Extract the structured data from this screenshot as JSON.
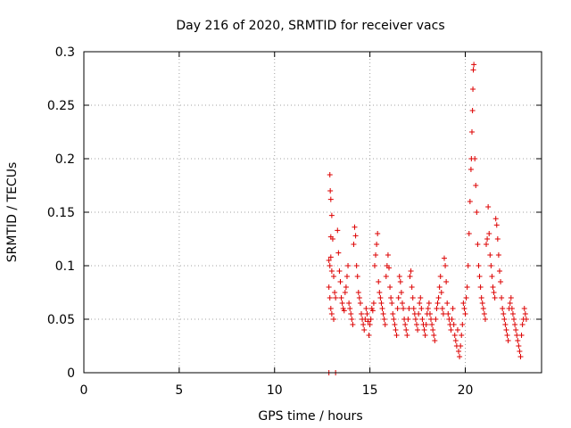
{
  "colors": {
    "series": "#dd0000",
    "grid": "#a0a0a0",
    "axis": "#000000"
  },
  "chart_data": {
    "type": "scatter",
    "title": "Day 216 of 2020, SRMTID for receiver vacs",
    "xlabel": "GPS time / hours",
    "ylabel": "SRMTID / TECUs",
    "xlim": [
      0,
      24
    ],
    "ylim": [
      0,
      0.3
    ],
    "grid": true,
    "marker": "plus",
    "x_ticks": [
      0,
      5,
      10,
      15,
      20
    ],
    "x_tick_labels": [
      "0",
      "5",
      "10",
      "15",
      "20"
    ],
    "y_ticks": [
      0,
      0.05,
      0.1,
      0.15,
      0.2,
      0.25,
      0.3
    ],
    "y_tick_labels": [
      "0",
      "0.05",
      "0.1",
      "0.15",
      "0.2",
      "0.25",
      "0.3"
    ],
    "series": [
      {
        "name": "SRMTID",
        "points": [
          [
            12.85,
            0.0
          ],
          [
            13.2,
            0.0
          ],
          [
            12.9,
            0.185
          ],
          [
            12.92,
            0.17
          ],
          [
            12.95,
            0.162
          ],
          [
            13.0,
            0.147
          ],
          [
            12.95,
            0.127
          ],
          [
            13.05,
            0.125
          ],
          [
            12.85,
            0.105
          ],
          [
            12.9,
            0.1
          ],
          [
            12.95,
            0.108
          ],
          [
            13.0,
            0.095
          ],
          [
            13.1,
            0.09
          ],
          [
            12.85,
            0.08
          ],
          [
            12.9,
            0.07
          ],
          [
            12.95,
            0.06
          ],
          [
            13.0,
            0.055
          ],
          [
            13.1,
            0.05
          ],
          [
            13.15,
            0.075
          ],
          [
            13.2,
            0.07
          ],
          [
            13.3,
            0.133
          ],
          [
            13.35,
            0.112
          ],
          [
            13.4,
            0.095
          ],
          [
            13.45,
            0.085
          ],
          [
            13.5,
            0.07
          ],
          [
            13.55,
            0.065
          ],
          [
            13.6,
            0.06
          ],
          [
            13.65,
            0.058
          ],
          [
            13.7,
            0.075
          ],
          [
            13.75,
            0.08
          ],
          [
            13.8,
            0.09
          ],
          [
            13.85,
            0.1
          ],
          [
            13.9,
            0.065
          ],
          [
            13.95,
            0.06
          ],
          [
            14.0,
            0.055
          ],
          [
            14.05,
            0.05
          ],
          [
            14.1,
            0.045
          ],
          [
            14.15,
            0.12
          ],
          [
            14.2,
            0.136
          ],
          [
            14.25,
            0.128
          ],
          [
            14.3,
            0.1
          ],
          [
            14.35,
            0.09
          ],
          [
            14.4,
            0.075
          ],
          [
            14.45,
            0.07
          ],
          [
            14.5,
            0.065
          ],
          [
            14.55,
            0.055
          ],
          [
            14.6,
            0.05
          ],
          [
            14.65,
            0.045
          ],
          [
            14.7,
            0.04
          ],
          [
            14.75,
            0.05
          ],
          [
            14.8,
            0.06
          ],
          [
            14.85,
            0.055
          ],
          [
            14.9,
            0.048
          ],
          [
            14.95,
            0.035
          ],
          [
            15.0,
            0.045
          ],
          [
            15.05,
            0.05
          ],
          [
            15.1,
            0.06
          ],
          [
            15.15,
            0.058
          ],
          [
            15.2,
            0.065
          ],
          [
            15.25,
            0.1
          ],
          [
            15.3,
            0.11
          ],
          [
            15.35,
            0.12
          ],
          [
            15.4,
            0.13
          ],
          [
            15.45,
            0.085
          ],
          [
            15.5,
            0.075
          ],
          [
            15.55,
            0.07
          ],
          [
            15.6,
            0.065
          ],
          [
            15.65,
            0.06
          ],
          [
            15.7,
            0.055
          ],
          [
            15.75,
            0.05
          ],
          [
            15.8,
            0.045
          ],
          [
            15.85,
            0.09
          ],
          [
            15.9,
            0.1
          ],
          [
            15.95,
            0.11
          ],
          [
            16.0,
            0.098
          ],
          [
            16.05,
            0.08
          ],
          [
            16.1,
            0.07
          ],
          [
            16.15,
            0.065
          ],
          [
            16.2,
            0.055
          ],
          [
            16.25,
            0.05
          ],
          [
            16.3,
            0.045
          ],
          [
            16.35,
            0.04
          ],
          [
            16.4,
            0.035
          ],
          [
            16.45,
            0.06
          ],
          [
            16.5,
            0.07
          ],
          [
            16.55,
            0.09
          ],
          [
            16.6,
            0.085
          ],
          [
            16.65,
            0.075
          ],
          [
            16.7,
            0.065
          ],
          [
            16.75,
            0.06
          ],
          [
            16.8,
            0.05
          ],
          [
            16.85,
            0.045
          ],
          [
            16.9,
            0.04
          ],
          [
            16.95,
            0.035
          ],
          [
            17.0,
            0.05
          ],
          [
            17.05,
            0.06
          ],
          [
            17.1,
            0.09
          ],
          [
            17.15,
            0.095
          ],
          [
            17.2,
            0.08
          ],
          [
            17.25,
            0.07
          ],
          [
            17.3,
            0.06
          ],
          [
            17.35,
            0.055
          ],
          [
            17.4,
            0.05
          ],
          [
            17.45,
            0.045
          ],
          [
            17.5,
            0.04
          ],
          [
            17.55,
            0.055
          ],
          [
            17.6,
            0.065
          ],
          [
            17.65,
            0.07
          ],
          [
            17.7,
            0.06
          ],
          [
            17.75,
            0.05
          ],
          [
            17.8,
            0.045
          ],
          [
            17.85,
            0.04
          ],
          [
            17.9,
            0.035
          ],
          [
            17.95,
            0.045
          ],
          [
            18.0,
            0.055
          ],
          [
            18.05,
            0.06
          ],
          [
            18.1,
            0.065
          ],
          [
            18.15,
            0.055
          ],
          [
            18.2,
            0.05
          ],
          [
            18.25,
            0.045
          ],
          [
            18.3,
            0.04
          ],
          [
            18.35,
            0.035
          ],
          [
            18.4,
            0.03
          ],
          [
            18.45,
            0.05
          ],
          [
            18.5,
            0.06
          ],
          [
            18.55,
            0.065
          ],
          [
            18.6,
            0.07
          ],
          [
            18.65,
            0.08
          ],
          [
            18.7,
            0.09
          ],
          [
            18.75,
            0.075
          ],
          [
            18.8,
            0.06
          ],
          [
            18.85,
            0.055
          ],
          [
            18.9,
            0.107
          ],
          [
            18.95,
            0.1
          ],
          [
            19.0,
            0.085
          ],
          [
            19.05,
            0.065
          ],
          [
            19.1,
            0.055
          ],
          [
            19.15,
            0.05
          ],
          [
            19.2,
            0.045
          ],
          [
            19.25,
            0.04
          ],
          [
            19.3,
            0.05
          ],
          [
            19.35,
            0.06
          ],
          [
            19.4,
            0.045
          ],
          [
            19.45,
            0.035
          ],
          [
            19.5,
            0.03
          ],
          [
            19.55,
            0.025
          ],
          [
            19.6,
            0.04
          ],
          [
            19.65,
            0.02
          ],
          [
            19.7,
            0.015
          ],
          [
            19.75,
            0.025
          ],
          [
            19.8,
            0.035
          ],
          [
            19.85,
            0.045
          ],
          [
            19.9,
            0.065
          ],
          [
            19.95,
            0.06
          ],
          [
            20.0,
            0.055
          ],
          [
            20.05,
            0.07
          ],
          [
            20.1,
            0.08
          ],
          [
            20.15,
            0.1
          ],
          [
            20.2,
            0.13
          ],
          [
            20.25,
            0.16
          ],
          [
            20.3,
            0.19
          ],
          [
            20.32,
            0.2
          ],
          [
            20.35,
            0.225
          ],
          [
            20.38,
            0.245
          ],
          [
            20.4,
            0.265
          ],
          [
            20.42,
            0.283
          ],
          [
            20.45,
            0.288
          ],
          [
            20.5,
            0.2
          ],
          [
            20.55,
            0.175
          ],
          [
            20.6,
            0.15
          ],
          [
            20.65,
            0.12
          ],
          [
            20.7,
            0.1
          ],
          [
            20.75,
            0.09
          ],
          [
            20.8,
            0.08
          ],
          [
            20.85,
            0.07
          ],
          [
            20.9,
            0.065
          ],
          [
            20.95,
            0.06
          ],
          [
            21.0,
            0.055
          ],
          [
            21.05,
            0.05
          ],
          [
            21.1,
            0.12
          ],
          [
            21.15,
            0.125
          ],
          [
            21.2,
            0.155
          ],
          [
            21.25,
            0.13
          ],
          [
            21.3,
            0.11
          ],
          [
            21.35,
            0.1
          ],
          [
            21.4,
            0.09
          ],
          [
            21.45,
            0.08
          ],
          [
            21.5,
            0.075
          ],
          [
            21.55,
            0.07
          ],
          [
            21.6,
            0.144
          ],
          [
            21.65,
            0.138
          ],
          [
            21.7,
            0.125
          ],
          [
            21.75,
            0.11
          ],
          [
            21.8,
            0.095
          ],
          [
            21.85,
            0.085
          ],
          [
            21.9,
            0.07
          ],
          [
            21.95,
            0.06
          ],
          [
            22.0,
            0.055
          ],
          [
            22.05,
            0.05
          ],
          [
            22.1,
            0.045
          ],
          [
            22.15,
            0.04
          ],
          [
            22.2,
            0.035
          ],
          [
            22.25,
            0.03
          ],
          [
            22.3,
            0.06
          ],
          [
            22.35,
            0.065
          ],
          [
            22.4,
            0.07
          ],
          [
            22.45,
            0.06
          ],
          [
            22.5,
            0.055
          ],
          [
            22.55,
            0.05
          ],
          [
            22.6,
            0.045
          ],
          [
            22.65,
            0.04
          ],
          [
            22.7,
            0.035
          ],
          [
            22.75,
            0.03
          ],
          [
            22.8,
            0.025
          ],
          [
            22.85,
            0.02
          ],
          [
            22.9,
            0.015
          ],
          [
            22.95,
            0.035
          ],
          [
            23.0,
            0.045
          ],
          [
            23.05,
            0.05
          ],
          [
            23.1,
            0.06
          ],
          [
            23.15,
            0.055
          ],
          [
            23.2,
            0.05
          ]
        ]
      }
    ]
  }
}
